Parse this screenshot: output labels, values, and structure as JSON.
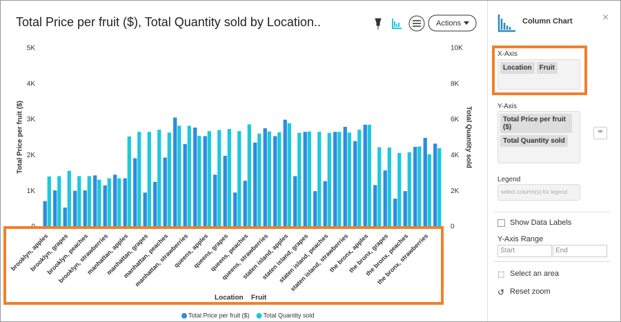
{
  "chart_data": {
    "type": "bar",
    "title": "Total Price per fruit ($), Total Quantity sold by Location..",
    "ylabel": "Total Price per fruit ($)",
    "y2label": "Total Quantity sold",
    "x_fields": [
      "Location",
      "Fruit"
    ],
    "categories": [
      "brooklyn, apples",
      null,
      "brooklyn, grapes",
      null,
      "brooklyn, peaches",
      null,
      "brooklyn, strawberries",
      null,
      "manhattan, apples",
      null,
      "manhattan, grapes",
      null,
      "manhattan, peaches",
      null,
      "manhattan, strawberries",
      null,
      "queens, apples",
      null,
      "queens, grapes",
      null,
      "queens, peaches",
      null,
      "queens, strawberries",
      null,
      "staten island, apples",
      null,
      "staten island, grapes",
      null,
      "staten island, peaches",
      null,
      "staten island, strawberries",
      null,
      "the bronx, apples",
      null,
      "the bronx, grapes",
      null,
      "the bronx, peaches",
      null,
      "the bronx, strawberries",
      null
    ],
    "series": [
      {
        "name": "Total Price per fruit ($)",
        "color": "#2e8be0",
        "values": [
          720,
          1020,
          540,
          1010,
          1020,
          1440,
          1160,
          1460,
          1360,
          1920,
          960,
          1260,
          1940,
          3060,
          2320,
          2780,
          2540,
          1460,
          1990,
          960,
          1290,
          2360,
          2760,
          2540,
          3000,
          1420,
          2660,
          1000,
          1280,
          2660,
          2800,
          2400,
          2860,
          1170,
          1580,
          790,
          1000,
          2240,
          2490,
          2330
        ]
      },
      {
        "name": "Total Quantity sold",
        "color": "#1ec8dc",
        "axis": "y2",
        "values": [
          2820,
          2840,
          3140,
          2840,
          2840,
          2640,
          2720,
          2720,
          5060,
          5320,
          5320,
          5440,
          5280,
          5660,
          5660,
          5100,
          5360,
          5420,
          5480,
          5360,
          5740,
          5220,
          5340,
          5300,
          5800,
          5260,
          5340,
          5320,
          5260,
          5320,
          5280,
          5440,
          5720,
          4460,
          4440,
          4140,
          4180,
          4500,
          4060,
          4400
        ]
      }
    ],
    "ylim": [
      0,
      5000
    ],
    "yticks": [
      0,
      {
        "value": 1000,
        "label": "1K"
      },
      {
        "value": 2000,
        "label": "2K"
      },
      {
        "value": 3000,
        "label": "3K"
      },
      {
        "value": 4000,
        "label": "4K"
      },
      {
        "value": 5000,
        "label": "5K"
      }
    ],
    "y2lim": [
      0,
      10000
    ],
    "y2ticks": [
      0,
      {
        "value": 2000,
        "label": "2K"
      },
      {
        "value": 4000,
        "label": "4K"
      },
      {
        "value": 6000,
        "label": "6K"
      },
      {
        "value": 8000,
        "label": "8K"
      },
      {
        "value": 10000,
        "label": "10K"
      }
    ],
    "grid": false
  },
  "toolbar": {
    "actions": "Actions"
  },
  "panel": {
    "title": "Column Chart",
    "x_axis": {
      "label": "X-Axis",
      "chips": [
        "Location",
        "Fruit"
      ]
    },
    "y_axis": {
      "label": "Y-Axis",
      "chips": [
        "Total Price per fruit ($)",
        "Total Quantity sold"
      ]
    },
    "legend": {
      "label": "Legend",
      "placeholder": "select column(s) for legend"
    },
    "show_labels": "Show Data Labels",
    "range": {
      "label": "Y-Axis Range",
      "start": "Start",
      "end": "End"
    },
    "select_area": "Select an area",
    "reset_zoom": "Reset zoom"
  }
}
